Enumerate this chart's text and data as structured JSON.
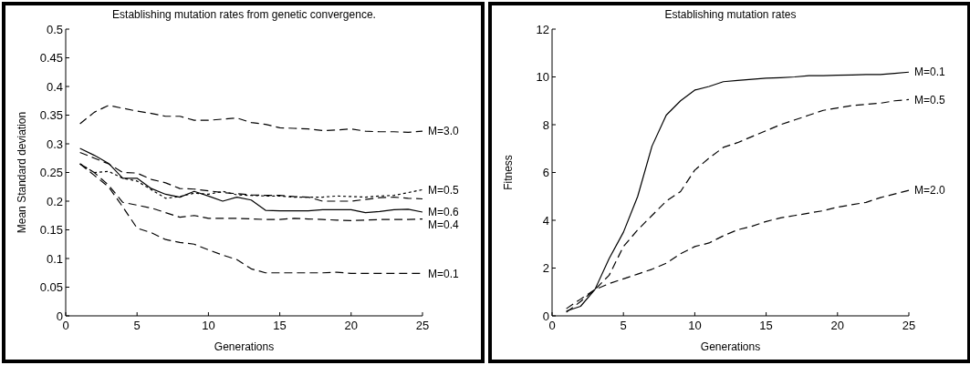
{
  "chart_data": [
    {
      "type": "line",
      "title": "Establishing mutation rates from genetic convergence.",
      "xlabel": "Generations",
      "ylabel": "Mean Standard deviation",
      "x": [
        1,
        2,
        3,
        4,
        5,
        6,
        7,
        8,
        9,
        10,
        11,
        12,
        13,
        14,
        15,
        16,
        17,
        18,
        19,
        20,
        21,
        22,
        23,
        24,
        25
      ],
      "xlim": [
        0,
        25
      ],
      "xticks": [
        0,
        5,
        10,
        15,
        20,
        25
      ],
      "ylim": [
        0,
        0.5
      ],
      "yticks": [
        0,
        0.05,
        0.1,
        0.15,
        0.2,
        0.25,
        0.3,
        0.35,
        0.4,
        0.45,
        0.5
      ],
      "grid": false,
      "marker": "none",
      "series": [
        {
          "name": "M=3.0",
          "color": "#000000",
          "line_style": "dashed",
          "values": [
            0.335,
            0.355,
            0.367,
            0.362,
            0.357,
            0.353,
            0.348,
            0.348,
            0.341,
            0.341,
            0.343,
            0.345,
            0.337,
            0.334,
            0.328,
            0.327,
            0.326,
            0.323,
            0.324,
            0.326,
            0.322,
            0.321,
            0.321,
            0.32,
            0.322
          ]
        },
        {
          "name": "M=0.5",
          "color": "#000000",
          "line_style": "dotted",
          "values": [
            0.265,
            0.25,
            0.252,
            0.24,
            0.235,
            0.22,
            0.205,
            0.208,
            0.214,
            0.212,
            0.217,
            0.211,
            0.21,
            0.209,
            0.209,
            0.207,
            0.207,
            0.207,
            0.209,
            0.208,
            0.207,
            0.209,
            0.21,
            0.215,
            0.22
          ]
        },
        {
          "color": "#000000",
          "line_style": "dashed",
          "values": [
            0.285,
            0.275,
            0.265,
            0.25,
            0.249,
            0.238,
            0.232,
            0.222,
            0.221,
            0.218,
            0.215,
            0.213,
            0.211,
            0.21,
            0.21,
            0.208,
            0.207,
            0.2,
            0.2,
            0.2,
            0.203,
            0.206,
            0.207,
            0.205,
            0.204
          ]
        },
        {
          "name": "M=0.6",
          "color": "#000000",
          "line_style": "solid",
          "values": [
            0.292,
            0.28,
            0.266,
            0.24,
            0.24,
            0.222,
            0.212,
            0.207,
            0.217,
            0.209,
            0.2,
            0.207,
            0.202,
            0.184,
            0.183,
            0.183,
            0.183,
            0.185,
            0.185,
            0.185,
            0.18,
            0.182,
            0.185,
            0.186,
            0.181
          ]
        },
        {
          "name": "M=0.4",
          "color": "#000000",
          "line_style": "dashed",
          "values": [
            0.265,
            0.25,
            0.228,
            0.198,
            0.193,
            0.188,
            0.18,
            0.172,
            0.175,
            0.17,
            0.17,
            0.17,
            0.169,
            0.168,
            0.168,
            0.17,
            0.169,
            0.168,
            0.167,
            0.166,
            0.167,
            0.168,
            0.168,
            0.168,
            0.169
          ]
        },
        {
          "name": "M=0.1",
          "color": "#000000",
          "line_style": "dashed",
          "values": [
            0.265,
            0.245,
            0.225,
            0.19,
            0.153,
            0.145,
            0.133,
            0.128,
            0.125,
            0.115,
            0.106,
            0.098,
            0.082,
            0.075,
            0.075,
            0.075,
            0.075,
            0.075,
            0.076,
            0.074,
            0.074,
            0.074,
            0.074,
            0.074,
            0.074
          ]
        }
      ]
    },
    {
      "type": "line",
      "title": "Establishing mutation rates",
      "xlabel": "Generations",
      "ylabel": "Fitness",
      "x": [
        1,
        2,
        3,
        4,
        5,
        6,
        7,
        8,
        9,
        10,
        11,
        12,
        13,
        14,
        15,
        16,
        17,
        18,
        19,
        20,
        21,
        22,
        23,
        24,
        25
      ],
      "xlim": [
        0,
        25
      ],
      "xticks": [
        0,
        5,
        10,
        15,
        20,
        25
      ],
      "ylim": [
        0,
        12
      ],
      "yticks": [
        0,
        2,
        4,
        6,
        8,
        10,
        12
      ],
      "grid": false,
      "marker": "none",
      "series": [
        {
          "name": "M=0.1",
          "color": "#000000",
          "line_style": "solid",
          "values": [
            0.2,
            0.4,
            1.1,
            2.4,
            3.5,
            5.0,
            7.1,
            8.4,
            9.0,
            9.45,
            9.6,
            9.8,
            9.85,
            9.9,
            9.95,
            9.97,
            10.0,
            10.05,
            10.05,
            10.07,
            10.08,
            10.1,
            10.1,
            10.15,
            10.2
          ]
        },
        {
          "name": "M=0.5",
          "color": "#000000",
          "line_style": "dashed",
          "values": [
            0.15,
            0.6,
            1.1,
            1.7,
            2.9,
            3.6,
            4.2,
            4.8,
            5.2,
            6.1,
            6.6,
            7.05,
            7.25,
            7.5,
            7.75,
            8.0,
            8.2,
            8.4,
            8.6,
            8.7,
            8.8,
            8.85,
            8.9,
            9.0,
            9.05
          ]
        },
        {
          "name": "M=2.0",
          "color": "#000000",
          "line_style": "dashed",
          "values": [
            0.3,
            0.7,
            1.1,
            1.35,
            1.55,
            1.75,
            1.95,
            2.2,
            2.6,
            2.9,
            3.05,
            3.35,
            3.6,
            3.75,
            3.95,
            4.1,
            4.2,
            4.3,
            4.4,
            4.55,
            4.65,
            4.75,
            4.95,
            5.1,
            5.25
          ]
        }
      ]
    }
  ]
}
